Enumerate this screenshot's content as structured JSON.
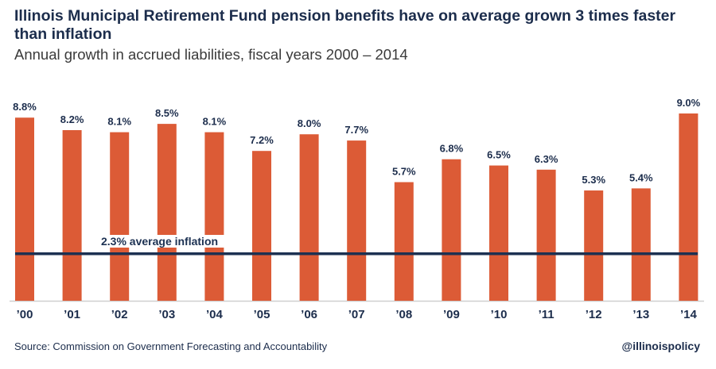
{
  "title": "Illinois Municipal Retirement Fund pension benefits have on average grown 3 times faster than inflation",
  "subtitle": "Annual growth in accrued liabilities, fiscal years 2000 – 2014",
  "source": "Source: Commission on Government Forecasting and Accountability",
  "handle": "@illinoispolicy",
  "chart_data": {
    "type": "bar",
    "categories": [
      "’00",
      "’01",
      "’02",
      "’03",
      "’04",
      "’05",
      "’06",
      "’07",
      "’08",
      "’09",
      "’10",
      "’11",
      "’12",
      "’13",
      "’14"
    ],
    "values": [
      8.8,
      8.2,
      8.1,
      8.5,
      8.1,
      7.2,
      8.0,
      7.7,
      5.7,
      6.8,
      6.5,
      6.3,
      5.3,
      5.4,
      9.0
    ],
    "data_labels": [
      "8.8%",
      "8.2%",
      "8.1%",
      "8.5%",
      "8.1%",
      "7.2%",
      "8.0%",
      "7.7%",
      "5.7%",
      "6.8%",
      "6.5%",
      "6.3%",
      "5.3%",
      "5.4%",
      "9.0%"
    ],
    "reference_line": {
      "value": 2.3,
      "label": "2.3% average inflation"
    },
    "ylim": [
      0,
      9.0
    ],
    "grid": false,
    "colors": {
      "bar": "#dc5b36",
      "line": "#1c3152",
      "text": "#1c2d4c"
    }
  }
}
